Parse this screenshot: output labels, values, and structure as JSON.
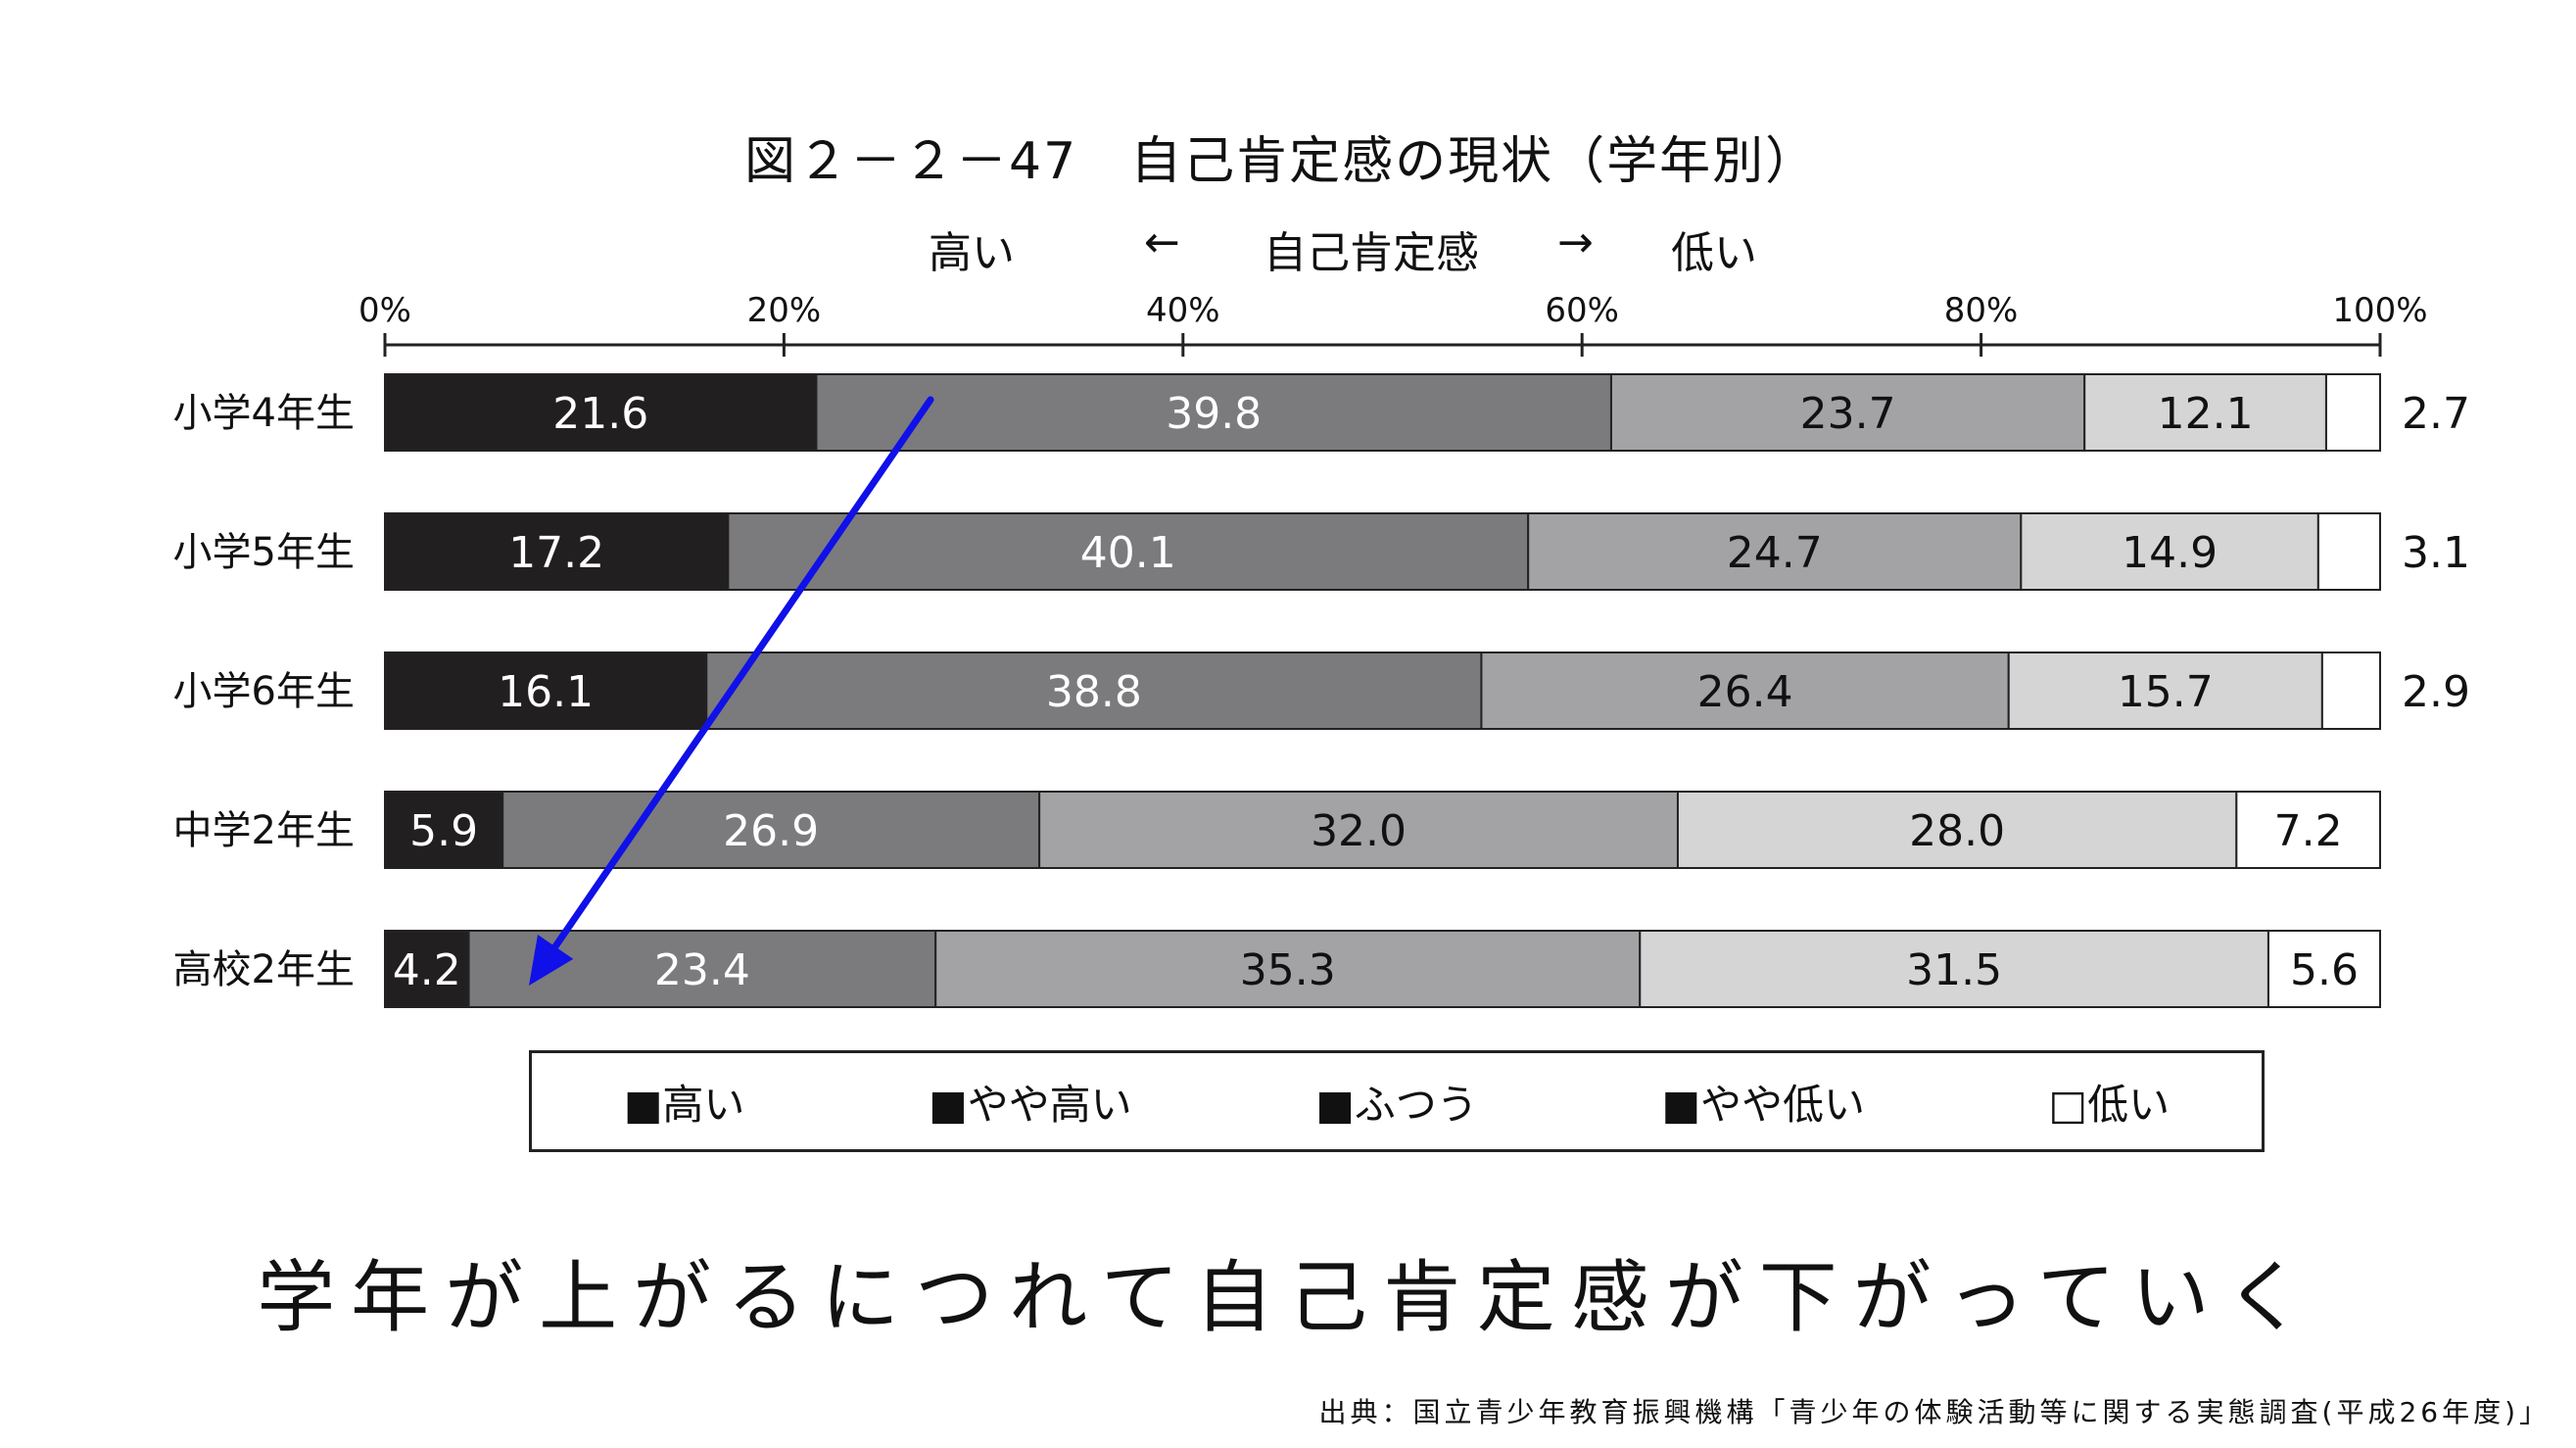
{
  "title": "図２－２－47　自己肯定感の現状（学年別）",
  "direction": {
    "high": "高い",
    "left_arrow": "←",
    "center": "自己肯定感",
    "right_arrow": "→",
    "low": "低い"
  },
  "chart_data": {
    "type": "bar",
    "orientation": "horizontal",
    "stacked": true,
    "percent_axis": [
      "0%",
      "20%",
      "40%",
      "60%",
      "80%",
      "100%"
    ],
    "xlim": [
      0,
      100
    ],
    "legend_position": "bottom",
    "categories": [
      "小学4年生",
      "小学5年生",
      "小学6年生",
      "中学2年生",
      "高校2年生"
    ],
    "series": [
      {
        "name": "高い",
        "values": [
          21.6,
          17.2,
          16.1,
          5.9,
          4.2
        ],
        "color": "#221f20"
      },
      {
        "name": "やや高い",
        "values": [
          39.8,
          40.1,
          38.8,
          26.9,
          23.4
        ],
        "color": "#7b7b7d"
      },
      {
        "name": "ふつう",
        "values": [
          23.7,
          24.7,
          26.4,
          32.0,
          35.3
        ],
        "color": "#a3a3a5"
      },
      {
        "name": "やや低い",
        "values": [
          12.1,
          14.9,
          15.7,
          28.0,
          31.5
        ],
        "color": "#d5d5d5"
      },
      {
        "name": "低い",
        "values": [
          2.7,
          3.1,
          2.9,
          7.2,
          5.6
        ],
        "color": "#ffffff"
      }
    ],
    "value_labels": [
      [
        "21.6",
        "39.8",
        "23.7",
        "12.1",
        "2.7"
      ],
      [
        "17.2",
        "40.1",
        "24.7",
        "14.9",
        "3.1"
      ],
      [
        "16.1",
        "38.8",
        "26.4",
        "15.7",
        "2.9"
      ],
      [
        "5.9",
        "26.9",
        "32.0",
        "28.0",
        "7.2"
      ],
      [
        "4.2",
        "23.4",
        "35.3",
        "31.5",
        "5.6"
      ]
    ],
    "annotation": {
      "type": "arrow",
      "color": "#1010e8"
    }
  },
  "legend_items": [
    "■高い",
    "■やや高い",
    "■ふつう",
    "■やや低い",
    "□低い"
  ],
  "conclusion": "学年が上がるにつれて自己肯定感が下がっていく",
  "source": "出典：国立青少年教育振興機構「青少年の体験活動等に関する実態調査(平成26年度)」"
}
